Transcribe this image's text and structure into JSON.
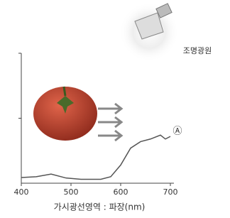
{
  "chart_data": {
    "type": "line",
    "x_label": "가시광선영역 : 파장(nm)",
    "annotations": [
      "조명광원",
      "Ⓐ"
    ],
    "x": [
      400,
      430,
      460,
      490,
      520,
      560,
      580,
      600,
      620,
      640,
      660,
      680,
      690,
      700
    ],
    "series": [
      {
        "color": "#555555",
        "values": [
          4.4,
          5,
          7,
          4,
          3,
          3,
          5,
          14,
          27,
          32,
          34,
          37,
          34,
          36
        ]
      }
    ],
    "xlim": [
      400,
      700
    ],
    "xticks": [
      400,
      500,
      600,
      700
    ],
    "ylim": [
      0,
      100
    ],
    "yticks": [
      50,
      100
    ]
  }
}
